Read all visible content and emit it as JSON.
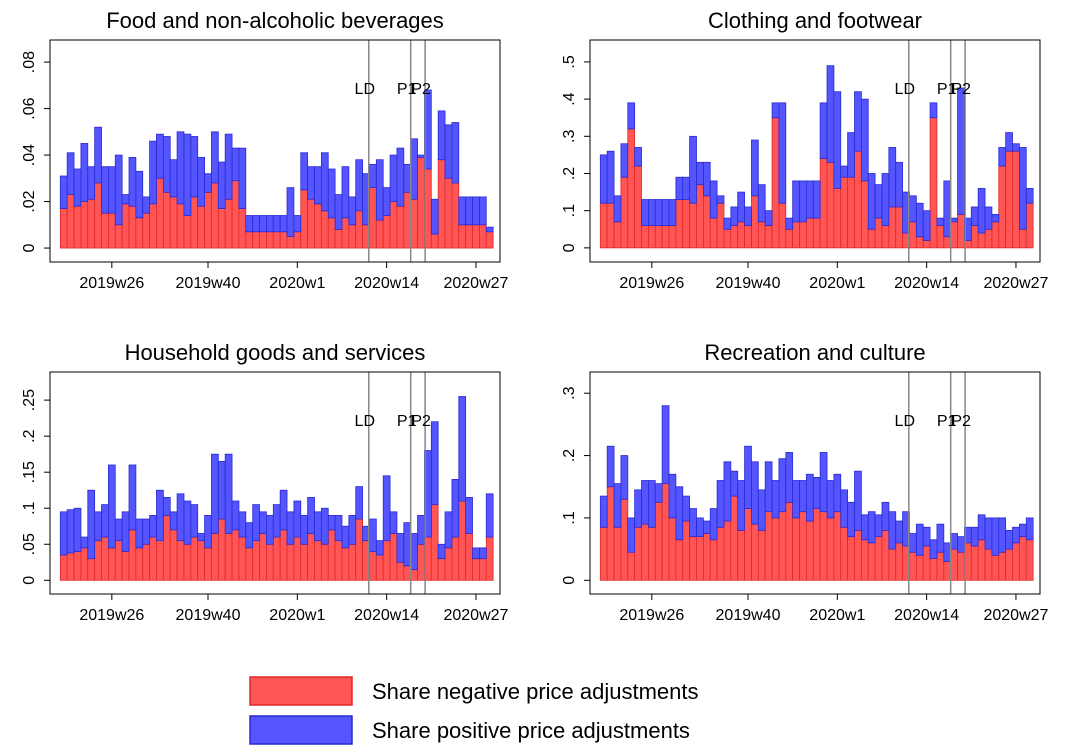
{
  "chart_data": [
    {
      "type": "bar",
      "stacked": true,
      "title": "Food and non-alcoholic beverages",
      "x": [
        19,
        20,
        21,
        22,
        23,
        24,
        25,
        26,
        27,
        28,
        29,
        30,
        31,
        32,
        33,
        34,
        35,
        36,
        37,
        38,
        39,
        40,
        41,
        42,
        43,
        44,
        45,
        46,
        47,
        48,
        49,
        50,
        51,
        52,
        53,
        54,
        55,
        56,
        57,
        58,
        59,
        60,
        61,
        62,
        63,
        64,
        65,
        66,
        67,
        68,
        69,
        70,
        71,
        72,
        73,
        74,
        75,
        76,
        77,
        78,
        79,
        80,
        81
      ],
      "xlim": [
        17,
        82.5
      ],
      "xticks": [
        {
          "value": 26,
          "label": "2019w26"
        },
        {
          "value": 40,
          "label": "2019w40"
        },
        {
          "value": 53,
          "label": "2020w1"
        },
        {
          "value": 66,
          "label": "2020w14"
        },
        {
          "value": 79,
          "label": "2020w27"
        }
      ],
      "ylim": [
        -0.006,
        0.0895
      ],
      "yticks": [
        0,
        {
          "value": 0.02,
          "label": ".02"
        },
        {
          "value": 0.04,
          "label": ".04"
        },
        {
          "value": 0.06,
          "label": ".06"
        },
        {
          "value": 0.08,
          "label": ".08"
        }
      ],
      "vlines": [
        {
          "x": 63.4,
          "label": "LD"
        },
        {
          "x": 69.5,
          "label": "P1"
        },
        {
          "x": 71.6,
          "label": "P2"
        }
      ],
      "series": [
        {
          "name": "Share negative price adjustments",
          "color": "#ff5555",
          "values": [
            0.017,
            0.023,
            0.018,
            0.02,
            0.021,
            0.028,
            0.015,
            0.015,
            0.01,
            0.019,
            0.018,
            0.013,
            0.015,
            0.019,
            0.03,
            0.024,
            0.022,
            0.019,
            0.014,
            0.022,
            0.018,
            0.024,
            0.028,
            0.017,
            0.021,
            0.029,
            0.017,
            0.007,
            0.007,
            0.007,
            0.007,
            0.007,
            0.007,
            0.005,
            0.007,
            0.025,
            0.021,
            0.019,
            0.016,
            0.013,
            0.008,
            0.013,
            0.01,
            0.016,
            0.01,
            0.026,
            0.012,
            0.014,
            0.02,
            0.018,
            0.024,
            0.021,
            0.039,
            0.034,
            0.006,
            0.038,
            0.03,
            0.028,
            0.01,
            0.01,
            0.01,
            0.01,
            0.007
          ]
        },
        {
          "name": "Share positive price adjustments",
          "color": "#5555ff",
          "values": [
            0.014,
            0.018,
            0.016,
            0.025,
            0.014,
            0.024,
            0.02,
            0.02,
            0.03,
            0.004,
            0.021,
            0.02,
            0.007,
            0.027,
            0.019,
            0.024,
            0.016,
            0.031,
            0.035,
            0.026,
            0.021,
            0.008,
            0.022,
            0.02,
            0.028,
            0.014,
            0.026,
            0.007,
            0.007,
            0.007,
            0.007,
            0.007,
            0.007,
            0.021,
            0.007,
            0.016,
            0.014,
            0.016,
            0.025,
            0.021,
            0.015,
            0.022,
            0.012,
            0.022,
            0.022,
            0.01,
            0.026,
            0.012,
            0.02,
            0.025,
            0.012,
            0.026,
            0.001,
            0.034,
            0.015,
            0.021,
            0.023,
            0.026,
            0.012,
            0.012,
            0.012,
            0.012,
            0.002
          ]
        }
      ]
    },
    {
      "type": "bar",
      "stacked": true,
      "title": "Clothing and footwear",
      "x": [
        19,
        20,
        21,
        22,
        23,
        24,
        25,
        26,
        27,
        28,
        29,
        30,
        31,
        32,
        33,
        34,
        35,
        36,
        37,
        38,
        39,
        40,
        41,
        42,
        43,
        44,
        45,
        46,
        47,
        48,
        49,
        50,
        51,
        52,
        53,
        54,
        55,
        56,
        57,
        58,
        59,
        60,
        61,
        62,
        63,
        64,
        65,
        66,
        67,
        68,
        69,
        70,
        71,
        72,
        73,
        74,
        75,
        76,
        77,
        78,
        79,
        80,
        81
      ],
      "xlim": [
        17,
        82.5
      ],
      "xticks": [
        {
          "value": 26,
          "label": "2019w26"
        },
        {
          "value": 40,
          "label": "2019w40"
        },
        {
          "value": 53,
          "label": "2020w1"
        },
        {
          "value": 66,
          "label": "2020w14"
        },
        {
          "value": 79,
          "label": "2020w27"
        }
      ],
      "ylim": [
        -0.038,
        0.559
      ],
      "yticks": [
        0,
        {
          "value": 0.1,
          "label": ".1"
        },
        {
          "value": 0.2,
          "label": ".2"
        },
        {
          "value": 0.3,
          "label": ".3"
        },
        {
          "value": 0.4,
          "label": ".4"
        },
        {
          "value": 0.5,
          "label": ".5"
        }
      ],
      "vlines": [
        {
          "x": 63.4,
          "label": "LD"
        },
        {
          "x": 69.5,
          "label": "P1"
        },
        {
          "x": 71.6,
          "label": "P2"
        }
      ],
      "series": [
        {
          "color": "#ff5555",
          "values": [
            0.12,
            0.12,
            0.07,
            0.19,
            0.32,
            0.22,
            0.06,
            0.06,
            0.06,
            0.06,
            0.06,
            0.13,
            0.13,
            0.12,
            0.17,
            0.14,
            0.08,
            0.12,
            0.05,
            0.06,
            0.07,
            0.06,
            0.14,
            0.07,
            0.06,
            0.35,
            0.12,
            0.05,
            0.07,
            0.07,
            0.08,
            0.08,
            0.24,
            0.23,
            0.16,
            0.19,
            0.19,
            0.26,
            0.18,
            0.05,
            0.08,
            0.06,
            0.11,
            0.11,
            0.04,
            0.07,
            0.03,
            0.02,
            0.35,
            0.06,
            0.03,
            0.07,
            0.09,
            0.02,
            0.06,
            0.04,
            0.05,
            0.07,
            0.22,
            0.26,
            0.26,
            0.05,
            0.12
          ]
        },
        {
          "color": "#5555ff",
          "values": [
            0.13,
            0.14,
            0.07,
            0.09,
            0.07,
            0.05,
            0.07,
            0.07,
            0.07,
            0.07,
            0.07,
            0.06,
            0.06,
            0.18,
            0.06,
            0.09,
            0.1,
            0.02,
            0.03,
            0.05,
            0.08,
            0.05,
            0.15,
            0.1,
            0.04,
            0.04,
            0.27,
            0.03,
            0.11,
            0.11,
            0.1,
            0.1,
            0.15,
            0.26,
            0.26,
            0.03,
            0.12,
            0.16,
            0.22,
            0.15,
            0.09,
            0.14,
            0.16,
            0.12,
            0.11,
            0.07,
            0.09,
            0.08,
            0.04,
            0.02,
            0.15,
            0.01,
            0.34,
            0.06,
            0.05,
            0.12,
            0.06,
            0.02,
            0.05,
            0.05,
            0.02,
            0.22,
            0.04
          ]
        }
      ]
    },
    {
      "type": "bar",
      "stacked": true,
      "title": "Household goods and services",
      "x": [
        19,
        20,
        21,
        22,
        23,
        24,
        25,
        26,
        27,
        28,
        29,
        30,
        31,
        32,
        33,
        34,
        35,
        36,
        37,
        38,
        39,
        40,
        41,
        42,
        43,
        44,
        45,
        46,
        47,
        48,
        49,
        50,
        51,
        52,
        53,
        54,
        55,
        56,
        57,
        58,
        59,
        60,
        61,
        62,
        63,
        64,
        65,
        66,
        67,
        68,
        69,
        70,
        71,
        72,
        73,
        74,
        75,
        76,
        77,
        78,
        79,
        80,
        81
      ],
      "xlim": [
        17,
        82.5
      ],
      "xticks": [
        {
          "value": 26,
          "label": "2019w26"
        },
        {
          "value": 40,
          "label": "2019w40"
        },
        {
          "value": 53,
          "label": "2020w1"
        },
        {
          "value": 66,
          "label": "2020w14"
        },
        {
          "value": 79,
          "label": "2020w27"
        }
      ],
      "ylim": [
        -0.019,
        0.289
      ],
      "yticks": [
        0,
        {
          "value": 0.05,
          "label": ".05"
        },
        {
          "value": 0.1,
          "label": ".1"
        },
        {
          "value": 0.15,
          "label": ".15"
        },
        {
          "value": 0.2,
          "label": ".2"
        },
        {
          "value": 0.25,
          "label": ".25"
        }
      ],
      "vlines": [
        {
          "x": 63.4,
          "label": "LD"
        },
        {
          "x": 69.5,
          "label": "P1"
        },
        {
          "x": 71.6,
          "label": "P2"
        }
      ],
      "series": [
        {
          "color": "#ff5555",
          "values": [
            0.035,
            0.038,
            0.04,
            0.045,
            0.03,
            0.055,
            0.06,
            0.045,
            0.055,
            0.04,
            0.07,
            0.045,
            0.05,
            0.06,
            0.055,
            0.09,
            0.07,
            0.055,
            0.05,
            0.06,
            0.055,
            0.045,
            0.065,
            0.085,
            0.065,
            0.07,
            0.06,
            0.045,
            0.055,
            0.065,
            0.05,
            0.06,
            0.07,
            0.05,
            0.06,
            0.05,
            0.065,
            0.055,
            0.05,
            0.07,
            0.055,
            0.045,
            0.05,
            0.085,
            0.055,
            0.04,
            0.035,
            0.055,
            0.065,
            0.025,
            0.02,
            0.015,
            0.05,
            0.06,
            0.105,
            0.03,
            0.045,
            0.06,
            0.11,
            0.065,
            0.03,
            0.03,
            0.06
          ]
        },
        {
          "color": "#5555ff",
          "values": [
            0.06,
            0.06,
            0.06,
            0.015,
            0.095,
            0.04,
            0.045,
            0.115,
            0.03,
            0.055,
            0.09,
            0.04,
            0.035,
            0.03,
            0.07,
            0.025,
            0.025,
            0.065,
            0.06,
            0.045,
            0.01,
            0.045,
            0.11,
            0.08,
            0.11,
            0.04,
            0.035,
            0.035,
            0.05,
            0.03,
            0.04,
            0.045,
            0.055,
            0.045,
            0.05,
            0.04,
            0.05,
            0.04,
            0.05,
            0.02,
            0.035,
            0.03,
            0.04,
            0.045,
            0.02,
            0.045,
            0.02,
            0.09,
            0.03,
            0.04,
            0.06,
            0.05,
            0.04,
            0.12,
            0.115,
            0.02,
            0.05,
            0.08,
            0.145,
            0.05,
            0.015,
            0.015,
            0.06
          ]
        }
      ]
    },
    {
      "type": "bar",
      "stacked": true,
      "title": "Recreation and culture",
      "x": [
        19,
        20,
        21,
        22,
        23,
        24,
        25,
        26,
        27,
        28,
        29,
        30,
        31,
        32,
        33,
        34,
        35,
        36,
        37,
        38,
        39,
        40,
        41,
        42,
        43,
        44,
        45,
        46,
        47,
        48,
        49,
        50,
        51,
        52,
        53,
        54,
        55,
        56,
        57,
        58,
        59,
        60,
        61,
        62,
        63,
        64,
        65,
        66,
        67,
        68,
        69,
        70,
        71,
        72,
        73,
        74,
        75,
        76,
        77,
        78,
        79,
        80,
        81
      ],
      "xlim": [
        17,
        82.5
      ],
      "xticks": [
        {
          "value": 26,
          "label": "2019w26"
        },
        {
          "value": 40,
          "label": "2019w40"
        },
        {
          "value": 53,
          "label": "2020w1"
        },
        {
          "value": 66,
          "label": "2020w14"
        },
        {
          "value": 79,
          "label": "2020w27"
        }
      ],
      "ylim": [
        -0.022,
        0.334
      ],
      "yticks": [
        0,
        {
          "value": 0.1,
          "label": ".1"
        },
        {
          "value": 0.2,
          "label": ".2"
        },
        {
          "value": 0.3,
          "label": ".3"
        }
      ],
      "vlines": [
        {
          "x": 63.4,
          "label": "LD"
        },
        {
          "x": 69.5,
          "label": "P1"
        },
        {
          "x": 71.6,
          "label": "P2"
        }
      ],
      "series": [
        {
          "color": "#ff5555",
          "values": [
            0.085,
            0.15,
            0.085,
            0.13,
            0.045,
            0.085,
            0.09,
            0.085,
            0.125,
            0.155,
            0.1,
            0.065,
            0.095,
            0.07,
            0.07,
            0.075,
            0.065,
            0.085,
            0.095,
            0.135,
            0.08,
            0.115,
            0.09,
            0.08,
            0.11,
            0.1,
            0.11,
            0.125,
            0.1,
            0.11,
            0.095,
            0.115,
            0.11,
            0.1,
            0.11,
            0.085,
            0.07,
            0.08,
            0.065,
            0.06,
            0.07,
            0.08,
            0.05,
            0.06,
            0.055,
            0.045,
            0.04,
            0.055,
            0.035,
            0.045,
            0.03,
            0.05,
            0.045,
            0.06,
            0.055,
            0.065,
            0.05,
            0.04,
            0.045,
            0.05,
            0.06,
            0.07,
            0.065
          ]
        },
        {
          "color": "#5555ff",
          "values": [
            0.05,
            0.065,
            0.07,
            0.07,
            0.055,
            0.06,
            0.07,
            0.075,
            0.03,
            0.125,
            0.07,
            0.085,
            0.04,
            0.045,
            0.03,
            0.02,
            0.05,
            0.075,
            0.095,
            0.04,
            0.08,
            0.1,
            0.1,
            0.065,
            0.08,
            0.06,
            0.085,
            0.08,
            0.06,
            0.05,
            0.075,
            0.05,
            0.095,
            0.06,
            0.06,
            0.06,
            0.055,
            0.095,
            0.04,
            0.05,
            0.035,
            0.045,
            0.06,
            0.035,
            0.055,
            0.03,
            0.05,
            0.03,
            0.03,
            0.045,
            0.03,
            0.025,
            0.025,
            0.025,
            0.03,
            0.04,
            0.05,
            0.06,
            0.055,
            0.03,
            0.025,
            0.02,
            0.035
          ]
        }
      ]
    }
  ]
}
